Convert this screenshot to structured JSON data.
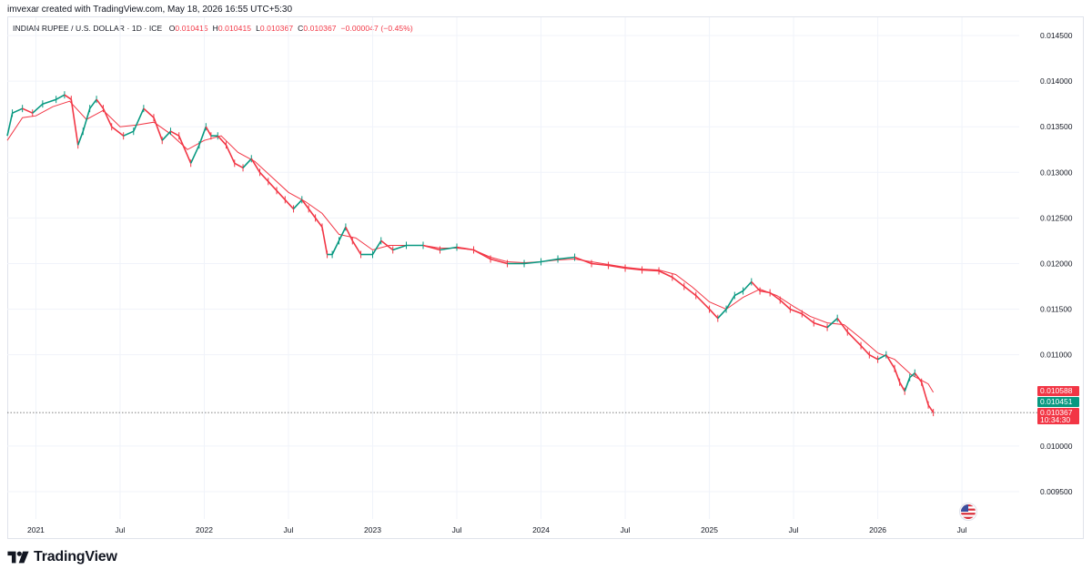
{
  "header": {
    "credit": "imvexar created with TradingView.com, May 18, 2026 16:55 UTC+5:30",
    "symbol": "INDIAN RUPEE / U.S. DOLLAR · 1D · ICE",
    "open_label": "O",
    "open": "0.010415",
    "high_label": "H",
    "high": "0.010415",
    "low_label": "L",
    "low": "0.010367",
    "close_label": "C",
    "close": "0.010367",
    "change": "−0.000047 (−0.45%)"
  },
  "price_tags": {
    "ma_value": "0.010588",
    "ma_color": "#f23645",
    "green_value": "0.010451",
    "green_color": "#089981",
    "last_value": "0.010367",
    "countdown": "10:34:30",
    "last_color": "#f23645"
  },
  "brand": {
    "name": "TradingView"
  },
  "icons": {
    "flag": "us-flag-icon"
  },
  "colors": {
    "up": "#089981",
    "down": "#f23645",
    "ma": "#f23645",
    "grid": "#f0f3fa",
    "axis_text": "#131722"
  },
  "chart_data": {
    "type": "line",
    "ylim": [
      0.0092,
      0.0147
    ],
    "y_ticks": [
      "0.014500",
      "0.014000",
      "0.013500",
      "0.013000",
      "0.012500",
      "0.012000",
      "0.011500",
      "0.011000",
      "0.010000",
      "0.009500"
    ],
    "x_ticks": [
      {
        "label": "2021",
        "t": 2021.0
      },
      {
        "label": "Jul",
        "t": 2021.5
      },
      {
        "label": "2022",
        "t": 2022.0
      },
      {
        "label": "Jul",
        "t": 2022.5
      },
      {
        "label": "2023",
        "t": 2023.0
      },
      {
        "label": "Jul",
        "t": 2023.5
      },
      {
        "label": "2024",
        "t": 2024.0
      },
      {
        "label": "Jul",
        "t": 2024.5
      },
      {
        "label": "2025",
        "t": 2025.0
      },
      {
        "label": "Jul",
        "t": 2025.5
      },
      {
        "label": "2026",
        "t": 2026.0
      },
      {
        "label": "Jul",
        "t": 2026.5
      }
    ],
    "xlim": [
      2020.83,
      2026.84
    ],
    "series": [
      {
        "points": [
          [
            2020.83,
            0.0134
          ],
          [
            2020.86,
            0.01365
          ],
          [
            2020.92,
            0.0137
          ],
          [
            2020.98,
            0.01365
          ],
          [
            2021.04,
            0.01375
          ],
          [
            2021.12,
            0.0138
          ],
          [
            2021.17,
            0.01385
          ],
          [
            2021.21,
            0.0138
          ],
          [
            2021.25,
            0.0133
          ],
          [
            2021.28,
            0.01345
          ],
          [
            2021.32,
            0.0137
          ],
          [
            2021.36,
            0.0138
          ],
          [
            2021.4,
            0.0137
          ],
          [
            2021.45,
            0.0135
          ],
          [
            2021.52,
            0.0134
          ],
          [
            2021.58,
            0.01345
          ],
          [
            2021.64,
            0.0137
          ],
          [
            2021.7,
            0.0136
          ],
          [
            2021.75,
            0.01335
          ],
          [
            2021.8,
            0.01345
          ],
          [
            2021.85,
            0.0134
          ],
          [
            2021.92,
            0.0131
          ],
          [
            2021.97,
            0.0133
          ],
          [
            2022.01,
            0.0135
          ],
          [
            2022.04,
            0.0134
          ],
          [
            2022.08,
            0.0134
          ],
          [
            2022.13,
            0.0133
          ],
          [
            2022.18,
            0.0131
          ],
          [
            2022.23,
            0.01305
          ],
          [
            2022.28,
            0.01315
          ],
          [
            2022.33,
            0.013
          ],
          [
            2022.38,
            0.0129
          ],
          [
            2022.43,
            0.0128
          ],
          [
            2022.48,
            0.0127
          ],
          [
            2022.53,
            0.0126
          ],
          [
            2022.58,
            0.0127
          ],
          [
            2022.62,
            0.0126
          ],
          [
            2022.66,
            0.0125
          ],
          [
            2022.7,
            0.0124
          ],
          [
            2022.73,
            0.0121
          ],
          [
            2022.76,
            0.0121
          ],
          [
            2022.8,
            0.01225
          ],
          [
            2022.84,
            0.0124
          ],
          [
            2022.88,
            0.01225
          ],
          [
            2022.93,
            0.0121
          ],
          [
            2023.0,
            0.0121
          ],
          [
            2023.05,
            0.01225
          ],
          [
            2023.12,
            0.01215
          ],
          [
            2023.2,
            0.0122
          ],
          [
            2023.3,
            0.0122
          ],
          [
            2023.4,
            0.01215
          ],
          [
            2023.5,
            0.01218
          ],
          [
            2023.6,
            0.01215
          ],
          [
            2023.7,
            0.01205
          ],
          [
            2023.8,
            0.012
          ],
          [
            2023.9,
            0.012
          ],
          [
            2024.0,
            0.01202
          ],
          [
            2024.1,
            0.01205
          ],
          [
            2024.2,
            0.01207
          ],
          [
            2024.3,
            0.012
          ],
          [
            2024.4,
            0.01198
          ],
          [
            2024.5,
            0.01195
          ],
          [
            2024.6,
            0.01193
          ],
          [
            2024.7,
            0.01192
          ],
          [
            2024.78,
            0.01185
          ],
          [
            2024.85,
            0.01175
          ],
          [
            2024.92,
            0.01165
          ],
          [
            2025.0,
            0.0115
          ],
          [
            2025.05,
            0.0114
          ],
          [
            2025.1,
            0.0115
          ],
          [
            2025.15,
            0.01165
          ],
          [
            2025.2,
            0.0117
          ],
          [
            2025.25,
            0.0118
          ],
          [
            2025.3,
            0.0117
          ],
          [
            2025.36,
            0.01168
          ],
          [
            2025.42,
            0.0116
          ],
          [
            2025.48,
            0.0115
          ],
          [
            2025.55,
            0.01145
          ],
          [
            2025.62,
            0.01135
          ],
          [
            2025.7,
            0.0113
          ],
          [
            2025.76,
            0.0114
          ],
          [
            2025.82,
            0.01125
          ],
          [
            2025.9,
            0.0111
          ],
          [
            2025.95,
            0.011
          ],
          [
            2026.0,
            0.01095
          ],
          [
            2026.05,
            0.011
          ],
          [
            2026.1,
            0.01085
          ],
          [
            2026.13,
            0.0107
          ],
          [
            2026.16,
            0.0106
          ],
          [
            2026.19,
            0.01075
          ],
          [
            2026.22,
            0.0108
          ],
          [
            2026.26,
            0.0107
          ],
          [
            2026.3,
            0.01045
          ],
          [
            2026.33,
            0.010367
          ]
        ]
      },
      {
        "points": [
          [
            2020.83,
            0.01335
          ],
          [
            2020.92,
            0.0136
          ],
          [
            2021.0,
            0.01362
          ],
          [
            2021.1,
            0.01372
          ],
          [
            2021.2,
            0.01378
          ],
          [
            2021.3,
            0.01358
          ],
          [
            2021.4,
            0.01368
          ],
          [
            2021.5,
            0.0135
          ],
          [
            2021.6,
            0.01352
          ],
          [
            2021.7,
            0.01355
          ],
          [
            2021.8,
            0.01342
          ],
          [
            2021.9,
            0.01325
          ],
          [
            2022.0,
            0.01335
          ],
          [
            2022.1,
            0.0134
          ],
          [
            2022.2,
            0.01322
          ],
          [
            2022.3,
            0.01312
          ],
          [
            2022.4,
            0.01295
          ],
          [
            2022.5,
            0.01278
          ],
          [
            2022.6,
            0.01268
          ],
          [
            2022.7,
            0.01255
          ],
          [
            2022.8,
            0.01232
          ],
          [
            2022.9,
            0.01228
          ],
          [
            2023.0,
            0.01215
          ],
          [
            2023.1,
            0.0122
          ],
          [
            2023.2,
            0.0122
          ],
          [
            2023.3,
            0.0122
          ],
          [
            2023.4,
            0.01217
          ],
          [
            2023.5,
            0.01217
          ],
          [
            2023.6,
            0.01215
          ],
          [
            2023.7,
            0.01207
          ],
          [
            2023.8,
            0.01202
          ],
          [
            2023.9,
            0.01201
          ],
          [
            2024.0,
            0.01202
          ],
          [
            2024.1,
            0.01204
          ],
          [
            2024.2,
            0.01205
          ],
          [
            2024.3,
            0.01202
          ],
          [
            2024.4,
            0.01199
          ],
          [
            2024.5,
            0.01196
          ],
          [
            2024.6,
            0.01194
          ],
          [
            2024.7,
            0.01193
          ],
          [
            2024.8,
            0.01188
          ],
          [
            2024.9,
            0.01174
          ],
          [
            2025.0,
            0.01158
          ],
          [
            2025.1,
            0.0115
          ],
          [
            2025.2,
            0.01163
          ],
          [
            2025.3,
            0.01172
          ],
          [
            2025.4,
            0.01165
          ],
          [
            2025.5,
            0.01153
          ],
          [
            2025.6,
            0.01142
          ],
          [
            2025.7,
            0.01135
          ],
          [
            2025.8,
            0.01133
          ],
          [
            2025.9,
            0.01118
          ],
          [
            2026.0,
            0.01102
          ],
          [
            2026.1,
            0.01095
          ],
          [
            2026.2,
            0.01078
          ],
          [
            2026.3,
            0.01068
          ],
          [
            2026.33,
            0.010588
          ]
        ]
      }
    ]
  }
}
